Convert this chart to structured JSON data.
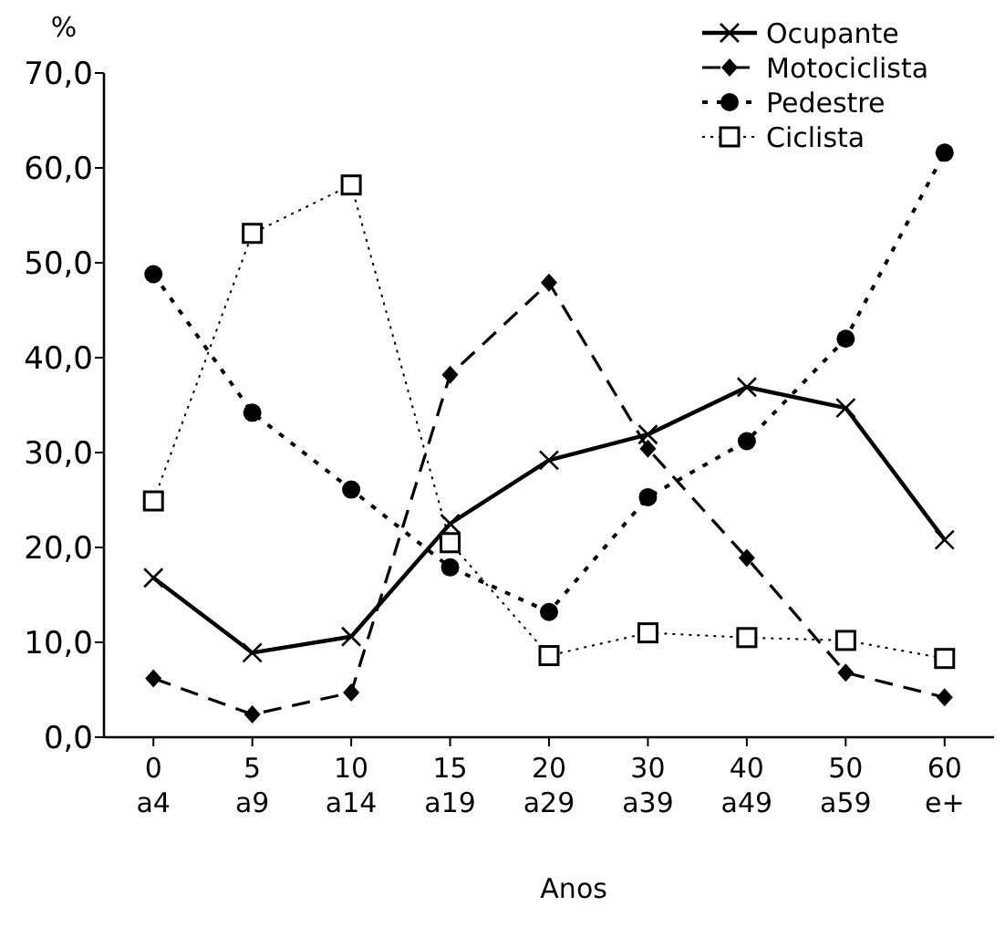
{
  "chart_data": {
    "type": "line",
    "ylabel": "%",
    "xlabel": "Anos",
    "categories": [
      "0 a4",
      "5 a9",
      "10 a14",
      "15 a19",
      "20 a29",
      "30 a39",
      "40 a49",
      "50 a59",
      "60 e+"
    ],
    "ylim": [
      0,
      70
    ],
    "yticks": [
      {
        "value": 0,
        "label": "0,0"
      },
      {
        "value": 10,
        "label": "10,0"
      },
      {
        "value": 20,
        "label": "20,0"
      },
      {
        "value": 30,
        "label": "30,0"
      },
      {
        "value": 40,
        "label": "40,0"
      },
      {
        "value": 50,
        "label": "50,0"
      },
      {
        "value": 60,
        "label": "60,0"
      },
      {
        "value": 70,
        "label": "70,0"
      }
    ],
    "grid": false,
    "legend": "top right",
    "series": [
      {
        "name": "Ocupante",
        "color": "#000000",
        "marker": "cross",
        "line_style": "solid",
        "values": [
          16.8,
          8.9,
          10.6,
          22.5,
          29.2,
          31.9,
          36.9,
          34.7,
          20.8
        ]
      },
      {
        "name": "Motociclista",
        "color": "#000000",
        "marker": "diamond",
        "line_style": "dashed",
        "values": [
          6.2,
          2.4,
          4.7,
          38.2,
          47.9,
          30.4,
          18.9,
          6.8,
          4.2
        ]
      },
      {
        "name": "Pedestre",
        "color": "#000000",
        "marker": "circle",
        "line_style": "dotted",
        "values": [
          48.8,
          34.2,
          26.1,
          17.9,
          13.2,
          25.3,
          31.2,
          42.0,
          61.6
        ]
      },
      {
        "name": "Ciclista",
        "color": "#000000",
        "marker": "square",
        "line_style": "dotted",
        "values": [
          24.9,
          53.1,
          58.2,
          20.5,
          8.6,
          11.0,
          10.5,
          10.2,
          8.3
        ]
      }
    ]
  }
}
